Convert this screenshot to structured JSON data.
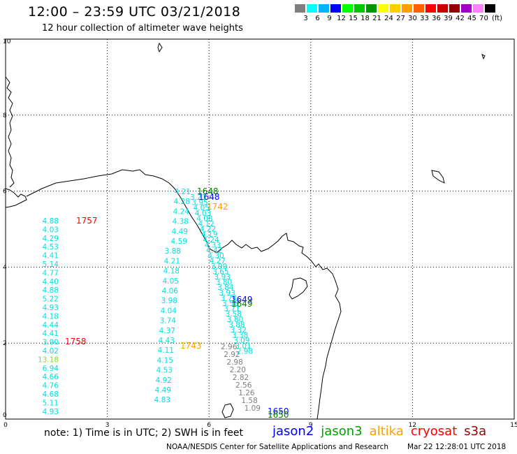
{
  "header": {
    "title": "12:00 – 23:59 UTC 03/21/2018",
    "subtitle": "12 hour collection of altimeter wave heights"
  },
  "colorbar": {
    "unit": "(ft)",
    "ticks": [
      "3",
      "6",
      "9",
      "12",
      "15",
      "18",
      "21",
      "24",
      "27",
      "30",
      "33",
      "36",
      "39",
      "42",
      "45",
      "70"
    ],
    "colors": [
      "#7f7f7f",
      "#00ffff",
      "#00b4ff",
      "#0000ff",
      "#00ff00",
      "#00c800",
      "#009600",
      "#ffff00",
      "#ffd000",
      "#ffa000",
      "#ff6000",
      "#ff0000",
      "#c80000",
      "#960000",
      "#a000c8",
      "#ff80ff",
      "#000000"
    ]
  },
  "map": {
    "x_ticks": [
      "0",
      "3",
      "6",
      "9",
      "12",
      "15"
    ],
    "y_ticks": [
      "0",
      "2",
      "4",
      "6",
      "8",
      "10"
    ],
    "grid": "dotted"
  },
  "tracks": {
    "jason2_time_label_1": "1648",
    "jason2_time_label_2": "1649",
    "jason2_time_label_3": "1650",
    "jason3_time_label_1": "1648",
    "jason3_time_label_2": "1649",
    "jason3_time_label_3": "1650",
    "altika_time_label_1": "1742",
    "altika_time_label_2": "1743",
    "cryosat_time_label_1": "1757",
    "cryosat_time_label_2": "1758",
    "cryosat_track_values": [
      "4.88",
      "4.03",
      "4.29",
      "4.53",
      "4.41",
      "5.14",
      "4.77",
      "4.40",
      "4.88",
      "5.22",
      "4.93",
      "4.18",
      "4.44",
      "4.41",
      "3.90",
      "4.02",
      "13.18",
      "6.94",
      "4.66",
      "4.76",
      "4.68",
      "5.11",
      "4.93"
    ],
    "altika_track_values": [
      "4.21",
      "4.28",
      "4.24",
      "4.38",
      "4.49",
      "4.59",
      "3.88",
      "4.21",
      "4.18",
      "4.05",
      "4.06",
      "3.98",
      "4.04",
      "3.74",
      "4.37",
      "4.43",
      "4.11",
      "4.15",
      "4.53",
      "4.92",
      "4.49",
      "4.83"
    ],
    "jason_track_values": [
      "3.21",
      "3.95",
      "4.05",
      "4.03",
      "4.08",
      "4.12",
      "4.22",
      "4.19",
      "4.24",
      "4.33",
      "4.42",
      "4.30",
      "4.27",
      "3.99",
      "3.65",
      "3.93",
      "3.80",
      "3.84",
      "3.93",
      "3.74",
      "3.56",
      "3.71",
      "3.58",
      "3.80",
      "3.88",
      "3.32",
      "3.38",
      "3.09",
      "3.01",
      "2.98"
    ],
    "jason_track_gray_values": [
      "2.96",
      "2.92",
      "2.98",
      "2.20",
      "2.82",
      "2.56",
      "1.26",
      "1.58",
      "1.09"
    ]
  },
  "notes": {
    "note_text": "note:  1) Time is in UTC;  2) SWH is in feet"
  },
  "legend": [
    {
      "label": "jason2",
      "color": "#0000ff"
    },
    {
      "label": "jason3",
      "color": "#00a000"
    },
    {
      "label": "altika",
      "color": "#ffa000"
    },
    {
      "label": "cryosat",
      "color": "#ff0000"
    },
    {
      "label": "s3a",
      "color": "#a00000"
    }
  ],
  "footer": {
    "credit": "NOAA/NESDIS Center for Satellite Applications and Research",
    "timestamp": "Mar 22 12:28:01 UTC 2018"
  }
}
